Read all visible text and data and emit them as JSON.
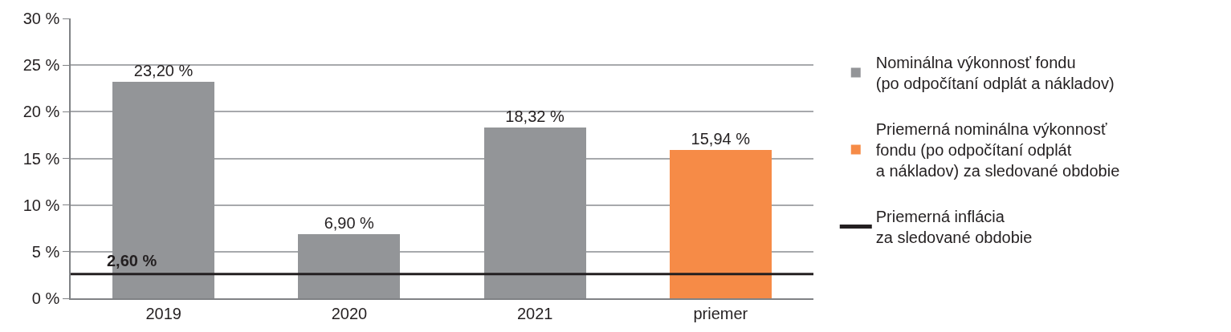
{
  "chart_data": {
    "type": "bar",
    "categories": [
      "2019",
      "2020",
      "2021",
      "priemer"
    ],
    "series": [
      {
        "name": "Nominálna výkonnosť fondu\n(po odpočítaní odplát a nákladov)",
        "color": "#939598",
        "values": [
          23.2,
          6.9,
          18.32,
          null
        ],
        "value_labels": [
          "23,20 %",
          "6,90 %",
          "18,32 %",
          null
        ]
      },
      {
        "name": "Priemerná nominálna výkonnosť\nfondu (po odpočítaní odplát\na nákladov) za sledované obdobie",
        "color": "#f68b47",
        "values": [
          null,
          null,
          null,
          15.94
        ],
        "value_labels": [
          null,
          null,
          null,
          "15,94 %"
        ]
      }
    ],
    "stacked": true,
    "ref_lines": [
      {
        "axis": "y",
        "value": 2.6,
        "label": "Priemerná inflácia\nza sledované obdobie",
        "color": "#231f20"
      }
    ],
    "annotations": [
      {
        "text": "2,60 %",
        "x": "2019",
        "y": 2.6
      }
    ],
    "ylim": [
      0,
      30
    ],
    "yticks": [
      {
        "value": 0,
        "label": "0 %"
      },
      {
        "value": 5,
        "label": "5 %"
      },
      {
        "value": 10,
        "label": "10 %"
      },
      {
        "value": 15,
        "label": "15 %"
      },
      {
        "value": 20,
        "label": "20 %"
      },
      {
        "value": 25,
        "label": "25 %"
      },
      {
        "value": 30,
        "label": "30 %"
      }
    ],
    "grid": "y",
    "legend": "right"
  }
}
